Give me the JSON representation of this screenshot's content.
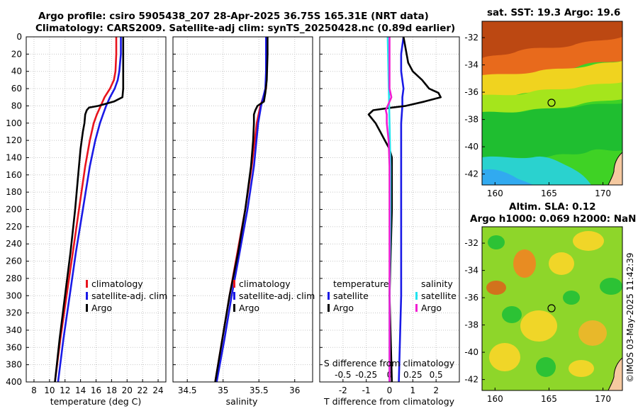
{
  "titles": {
    "main_line1": "Argo profile: csiro 5905438_207 28-Apr-2025 36.75S 165.31E (NRT data)",
    "main_line2": "Climatology: CARS2009. Satellite-adj clim: synTS_20250428.nc (0.89d earlier)",
    "sst_title": "sat. SST: 19.3 Argo: 19.6",
    "sla_title1": "Altim. SLA: 0.12",
    "sla_title2": "Argo h1000: 0.069 h2000: NaN",
    "stamp": "©IMOS 03-May-2025 11:42:39"
  },
  "colors": {
    "climatology": "#e8141e",
    "satellite": "#1a1ae6",
    "argo": "#000000",
    "salinity_satellite": "#22e4f0",
    "salinity_argo": "#f01ed2",
    "grid": "#c8c8c8"
  },
  "chart_data": [
    {
      "type": "line",
      "name": "temperature",
      "xlabel": "temperature (deg C)",
      "ylabel": "",
      "xlim": [
        7,
        25
      ],
      "ylim": [
        400,
        0
      ],
      "xticks": [
        8,
        10,
        12,
        14,
        16,
        18,
        20,
        22,
        24
      ],
      "yticks": [
        0,
        20,
        40,
        60,
        80,
        100,
        120,
        140,
        160,
        180,
        200,
        220,
        240,
        260,
        280,
        300,
        320,
        340,
        360,
        380,
        400
      ],
      "legend": [
        "climatology",
        "satellite-adj. clim",
        "Argo"
      ],
      "series": [
        {
          "name": "climatology",
          "depth": [
            0,
            20,
            40,
            50,
            60,
            70,
            80,
            90,
            100,
            120,
            150,
            200,
            250,
            300,
            350,
            400
          ],
          "values": [
            18.6,
            18.6,
            18.5,
            18.3,
            17.8,
            17.1,
            16.6,
            16.1,
            15.7,
            15.2,
            14.6,
            13.8,
            13.0,
            12.2,
            11.4,
            10.7
          ]
        },
        {
          "name": "satellite-adj. clim",
          "depth": [
            0,
            20,
            40,
            50,
            60,
            70,
            80,
            90,
            100,
            120,
            150,
            200,
            250,
            300,
            350,
            400
          ],
          "values": [
            19.2,
            19.2,
            19.0,
            18.8,
            18.4,
            17.8,
            17.3,
            16.9,
            16.5,
            15.9,
            15.2,
            14.3,
            13.4,
            12.6,
            11.8,
            11.1
          ]
        },
        {
          "name": "Argo",
          "depth": [
            0,
            10,
            30,
            60,
            70,
            75,
            80,
            82,
            85,
            90,
            100,
            110,
            130,
            150,
            200,
            250,
            300,
            350,
            400
          ],
          "values": [
            19.5,
            19.5,
            19.5,
            19.5,
            19.4,
            18.3,
            16.3,
            15.1,
            14.8,
            14.6,
            14.5,
            14.3,
            14.0,
            13.8,
            13.3,
            12.7,
            12.0,
            11.3,
            10.7
          ]
        }
      ]
    },
    {
      "type": "line",
      "name": "salinity",
      "xlabel": "salinity",
      "xlim": [
        34.3,
        36.25
      ],
      "ylim": [
        400,
        0
      ],
      "xticks": [
        34.5,
        35,
        35.5,
        36
      ],
      "xtick_labels": [
        "34.5",
        "35",
        "35.5",
        "36"
      ],
      "legend": [
        "climatology",
        "satellite-adj. clim",
        "Argo"
      ],
      "series": [
        {
          "name": "climatology",
          "depth": [
            0,
            40,
            60,
            70,
            80,
            100,
            150,
            200,
            250,
            300,
            350,
            400
          ],
          "values": [
            35.61,
            35.61,
            35.6,
            35.56,
            35.52,
            35.47,
            35.4,
            35.31,
            35.2,
            35.09,
            34.99,
            34.89
          ]
        },
        {
          "name": "satellite-adj. clim",
          "depth": [
            0,
            40,
            60,
            70,
            80,
            100,
            150,
            200,
            250,
            300,
            350,
            400
          ],
          "values": [
            35.6,
            35.6,
            35.59,
            35.56,
            35.53,
            35.49,
            35.43,
            35.34,
            35.23,
            35.12,
            35.02,
            34.91
          ]
        },
        {
          "name": "Argo",
          "depth": [
            0,
            20,
            50,
            65,
            75,
            80,
            85,
            90,
            100,
            120,
            150,
            200,
            250,
            300,
            350,
            400
          ],
          "values": [
            35.62,
            35.62,
            35.61,
            35.59,
            35.57,
            35.48,
            35.45,
            35.43,
            35.43,
            35.42,
            35.39,
            35.31,
            35.21,
            35.09,
            34.99,
            34.89
          ]
        }
      ]
    },
    {
      "type": "line",
      "name": "difference",
      "xlabel": "T difference from climatology",
      "top_axis_label": "S difference from climatology",
      "xlim": [
        -3,
        3
      ],
      "ylim": [
        400,
        0
      ],
      "xticks": [
        -2,
        -1,
        0,
        1,
        2
      ],
      "s_xticks": [
        -0.5,
        -0.25,
        0,
        0.25,
        0.5
      ],
      "s_xtick_labels": [
        "-0.5",
        "-0.25",
        "0",
        "0.25",
        "0.5"
      ],
      "legend_temperature_title": "temperature",
      "legend_salinity_title": "salinity",
      "legend": [
        "satellite",
        "Argo"
      ],
      "series": [
        {
          "name": "temperature satellite",
          "depth": [
            0,
            20,
            40,
            60,
            70,
            80,
            100,
            150,
            200,
            300,
            400
          ],
          "values": [
            0.6,
            0.5,
            0.5,
            0.6,
            0.55,
            0.55,
            0.5,
            0.5,
            0.5,
            0.5,
            0.4
          ]
        },
        {
          "name": "temperature Argo",
          "depth": [
            0,
            30,
            40,
            50,
            60,
            65,
            70,
            75,
            80,
            82,
            85,
            90,
            100,
            110,
            120,
            130,
            140,
            150,
            200,
            300,
            400
          ],
          "values": [
            0.6,
            0.8,
            1.0,
            1.4,
            1.7,
            2.1,
            2.2,
            1.5,
            0.7,
            0.1,
            -0.7,
            -0.9,
            -0.6,
            -0.4,
            -0.2,
            0.0,
            0.1,
            0.1,
            0.1,
            0.0,
            0.1
          ]
        },
        {
          "name": "salinity satellite",
          "depth": [
            0,
            50,
            100,
            150,
            200,
            300,
            400
          ],
          "values": [
            -0.02,
            -0.01,
            0.0,
            0.01,
            0.01,
            0.0,
            0.0
          ]
        },
        {
          "name": "salinity Argo",
          "depth": [
            0,
            40,
            60,
            70,
            80,
            85,
            90,
            100,
            120,
            150,
            200,
            300,
            400
          ],
          "values": [
            0.0,
            0.0,
            0.0,
            0.02,
            -0.02,
            -0.04,
            -0.03,
            -0.03,
            -0.01,
            0.0,
            0.0,
            0.0,
            0.0
          ]
        }
      ]
    },
    {
      "type": "heatmap",
      "name": "sat-sst-map",
      "xlim": [
        158.8,
        171.8
      ],
      "ylim": [
        -42.8,
        -30.8
      ],
      "xticks": [
        160,
        165,
        170
      ],
      "yticks": [
        -32,
        -34,
        -36,
        -38,
        -40,
        -42
      ],
      "marker": {
        "lon": 165.31,
        "lat": -36.75
      }
    },
    {
      "type": "heatmap",
      "name": "altim-sla-map",
      "xlim": [
        158.8,
        171.8
      ],
      "ylim": [
        -42.8,
        -30.8
      ],
      "xticks": [
        160,
        165,
        170
      ],
      "yticks": [
        -32,
        -34,
        -36,
        -38,
        -40,
        -42
      ],
      "marker": {
        "lon": 165.31,
        "lat": -36.75
      }
    }
  ]
}
